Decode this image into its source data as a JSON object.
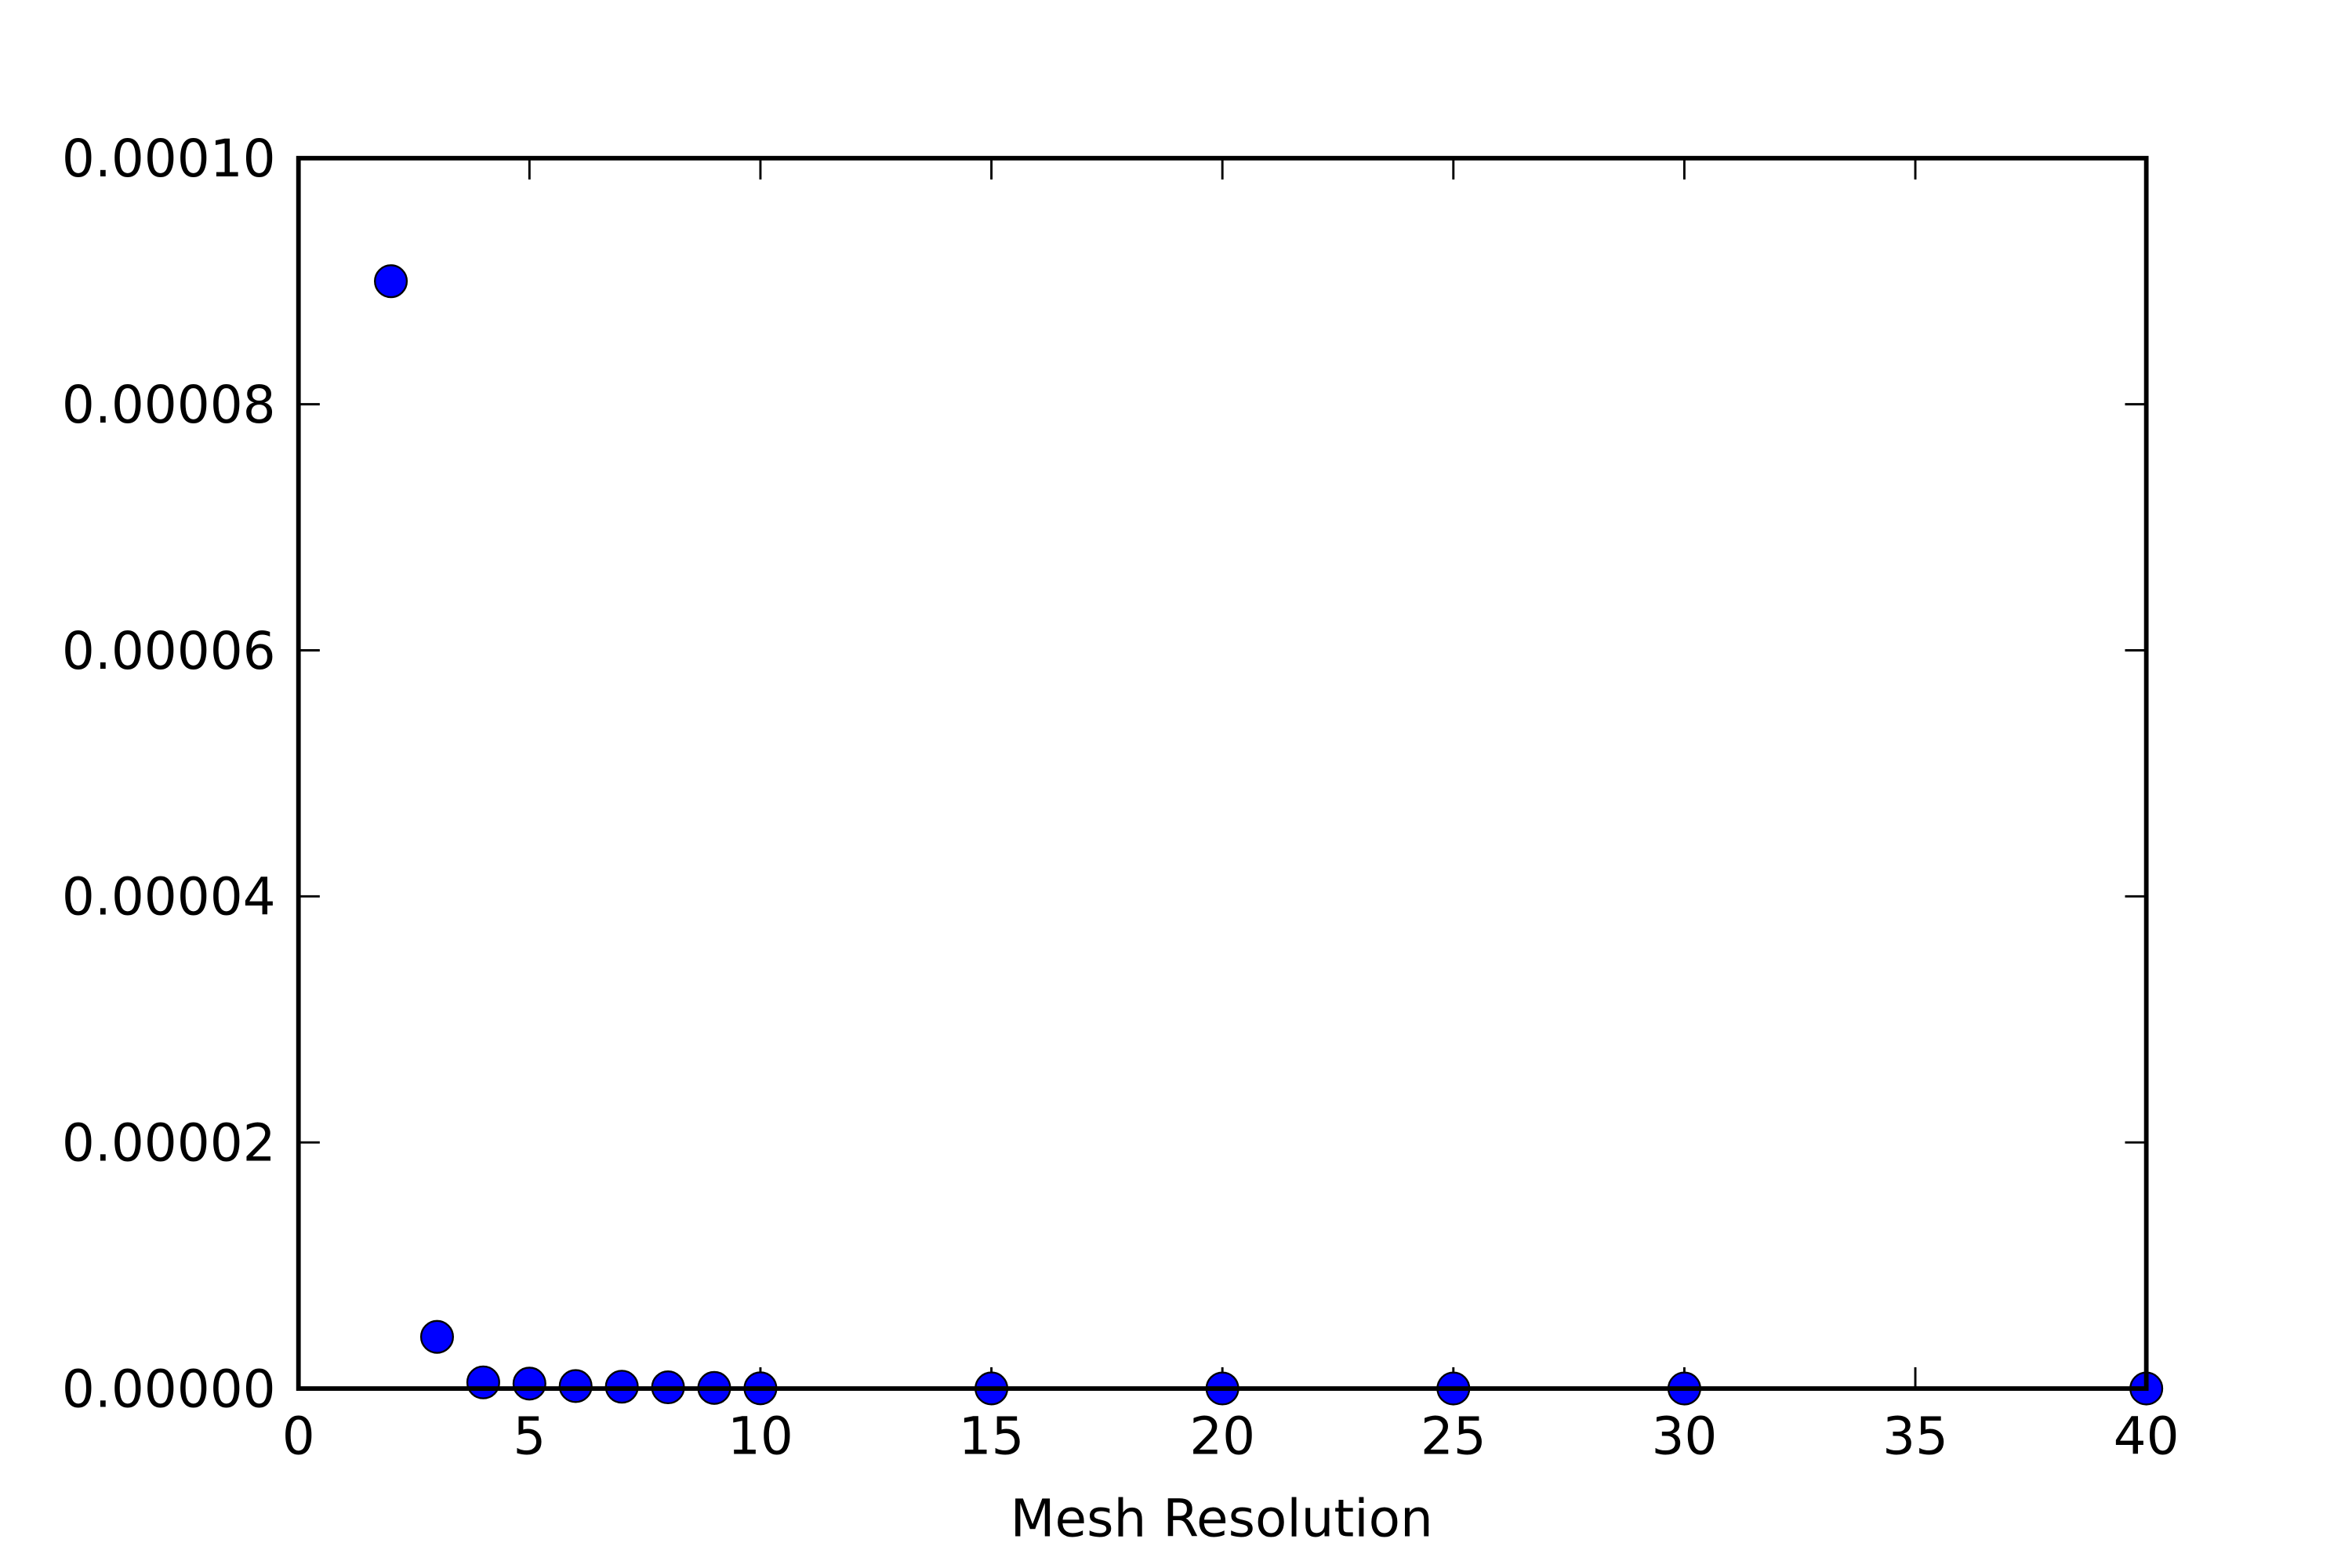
{
  "chart_data": {
    "type": "scatter",
    "x_label": "Mesh Resolution",
    "series": [
      {
        "color": "#0000ff",
        "x": [
          2,
          3,
          4,
          5,
          6,
          7,
          8,
          9,
          10,
          15,
          20,
          25,
          30,
          40
        ],
        "values": [
          9e-05,
          4.2e-06,
          5e-07,
          4e-07,
          2e-07,
          1.5e-07,
          1e-07,
          5e-08,
          2e-08,
          1e-08,
          5e-09,
          3e-09,
          2e-09,
          1e-09
        ]
      }
    ],
    "xlim": [
      0,
      40
    ],
    "xticks": [
      0,
      5,
      10,
      15,
      20,
      25,
      30,
      35,
      40
    ],
    "ylim": [
      0,
      0.0001
    ],
    "yticks": [
      {
        "value": 0,
        "label": "0.00000"
      },
      {
        "value": 2e-05,
        "label": "0.00002"
      },
      {
        "value": 4e-05,
        "label": "0.00004"
      },
      {
        "value": 6e-05,
        "label": "0.00006"
      },
      {
        "value": 8e-05,
        "label": "0.00008"
      },
      {
        "value": 0.0001,
        "label": "0.00010"
      }
    ]
  }
}
